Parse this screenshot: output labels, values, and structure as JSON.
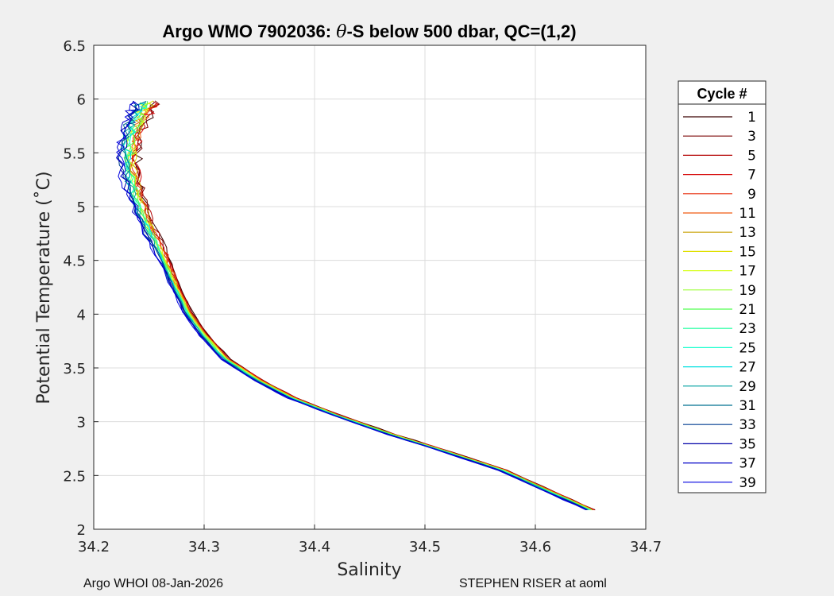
{
  "chart_data": {
    "type": "line",
    "title": "Argo WMO 7902036: θ-S below 500 dbar,  QC=(1,2)",
    "title_parts": {
      "prefix": "Argo WMO 7902036: ",
      "symbol": "θ",
      "suffix": "-S below 500 dbar,  QC=(1,2)"
    },
    "xlabel": "Salinity",
    "ylabel": "Potential Temperature (˚C)",
    "xlim": [
      34.2,
      34.7
    ],
    "ylim": [
      2,
      6.5
    ],
    "xticks": [
      "34.2",
      "34.3",
      "34.4",
      "34.5",
      "34.6",
      "34.7"
    ],
    "yticks": [
      "2",
      "2.5",
      "3",
      "3.5",
      "4",
      "4.5",
      "5",
      "5.5",
      "6",
      "6.5"
    ],
    "grid": true,
    "legend": {
      "title": "Cycle #",
      "placement": "right-outside",
      "entries": [
        "1",
        "3",
        "5",
        "7",
        "9",
        "11",
        "13",
        "15",
        "17",
        "19",
        "21",
        "23",
        "25",
        "27",
        "29",
        "31",
        "33",
        "35",
        "37",
        "39"
      ],
      "colors": [
        "#3a0000",
        "#7a0000",
        "#b30000",
        "#d60a0a",
        "#e83010",
        "#f05a10",
        "#c8a000",
        "#e0e000",
        "#d8ff20",
        "#a0ff40",
        "#50ff50",
        "#20ffa0",
        "#20ffd0",
        "#00e0e0",
        "#00a0a0",
        "#007090",
        "#003c90",
        "#0000a8",
        "#0000c8",
        "#0000e0"
      ]
    },
    "profile_points": {
      "salinity": [
        34.65,
        34.62,
        34.57,
        34.52,
        34.47,
        34.42,
        34.38,
        34.35,
        34.32,
        34.3,
        34.285,
        34.272,
        34.262,
        34.252,
        34.244,
        34.238,
        34.234,
        34.232,
        34.233,
        34.237,
        34.243,
        34.248
      ],
      "temperature": [
        2.18,
        2.32,
        2.55,
        2.72,
        2.88,
        3.06,
        3.22,
        3.38,
        3.58,
        3.8,
        4.02,
        4.3,
        4.55,
        4.75,
        4.95,
        5.12,
        5.28,
        5.45,
        5.6,
        5.75,
        5.88,
        5.97
      ]
    }
  },
  "footer": {
    "left": "Argo WHOI 08-Jan-2026",
    "right": "STEPHEN RISER at aoml"
  }
}
